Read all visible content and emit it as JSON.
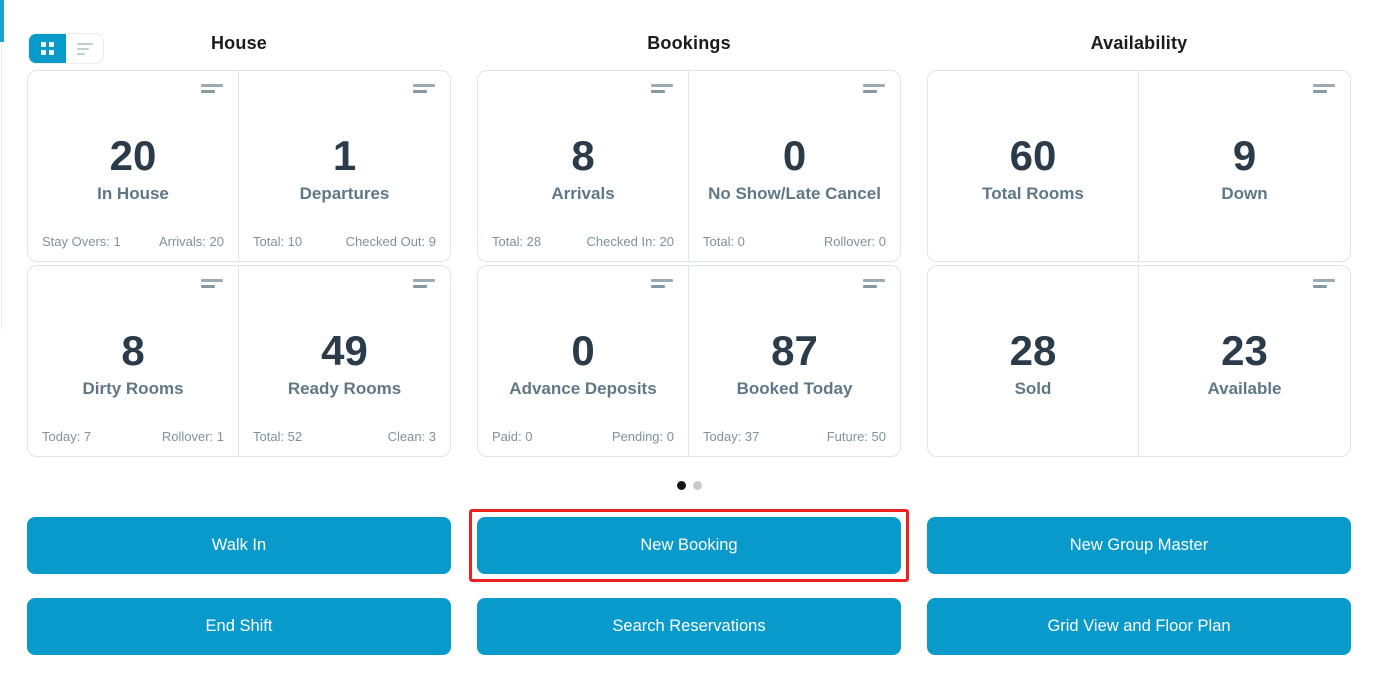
{
  "colors": {
    "accent_blue": "#089acb",
    "highlight_red": "#ef2020",
    "value_text": "#2b3b49",
    "label_text": "#5f7887",
    "footer_text": "#7e929d",
    "card_border": "#dfe4e7",
    "menu_icon_gray": "#8599a5",
    "dot_active": "#161616",
    "dot_inactive": "#c9c9c9"
  },
  "view_toggle": {
    "options": [
      {
        "name": "grid-view",
        "active": true
      },
      {
        "name": "list-view",
        "active": false
      }
    ]
  },
  "sections": [
    {
      "title": "House",
      "cards": [
        {
          "value": "20",
          "label": "In House",
          "footer_left": "Stay Overs: 1",
          "footer_right": "Arrivals: 20",
          "menu_icon": true
        },
        {
          "value": "1",
          "label": "Departures",
          "footer_left": "Total: 10",
          "footer_right": "Checked Out: 9",
          "menu_icon": true
        },
        {
          "value": "8",
          "label": "Dirty Rooms",
          "footer_left": "Today: 7",
          "footer_right": "Rollover: 1",
          "menu_icon": true
        },
        {
          "value": "49",
          "label": "Ready Rooms",
          "footer_left": "Total: 52",
          "footer_right": "Clean: 3",
          "menu_icon": true
        }
      ]
    },
    {
      "title": "Bookings",
      "cards": [
        {
          "value": "8",
          "label": "Arrivals",
          "footer_left": "Total: 28",
          "footer_right": "Checked In: 20",
          "menu_icon": true
        },
        {
          "value": "0",
          "label": "No Show/Late Cancel",
          "footer_left": "Total: 0",
          "footer_right": "Rollover: 0",
          "menu_icon": true
        },
        {
          "value": "0",
          "label": "Advance Deposits",
          "footer_left": "Paid: 0",
          "footer_right": "Pending: 0",
          "menu_icon": true
        },
        {
          "value": "87",
          "label": "Booked Today",
          "footer_left": "Today: 37",
          "footer_right": "Future: 50",
          "menu_icon": true
        }
      ]
    },
    {
      "title": "Availability",
      "cards": [
        {
          "value": "60",
          "label": "Total Rooms",
          "footer_left": "",
          "footer_right": "",
          "menu_icon": false
        },
        {
          "value": "9",
          "label": "Down",
          "footer_left": "",
          "footer_right": "",
          "menu_icon": true
        },
        {
          "value": "28",
          "label": "Sold",
          "footer_left": "",
          "footer_right": "",
          "menu_icon": false
        },
        {
          "value": "23",
          "label": "Available",
          "footer_left": "",
          "footer_right": "",
          "menu_icon": true
        }
      ]
    }
  ],
  "carousel": {
    "active_page": 1,
    "total_pages": 2
  },
  "action_buttons": [
    {
      "label": "Walk In",
      "highlighted": false
    },
    {
      "label": "New Booking",
      "highlighted": true
    },
    {
      "label": "New Group Master",
      "highlighted": false
    },
    {
      "label": "End Shift",
      "highlighted": false
    },
    {
      "label": "Search Reservations",
      "highlighted": false
    },
    {
      "label": "Grid View and Floor Plan",
      "highlighted": false
    }
  ]
}
